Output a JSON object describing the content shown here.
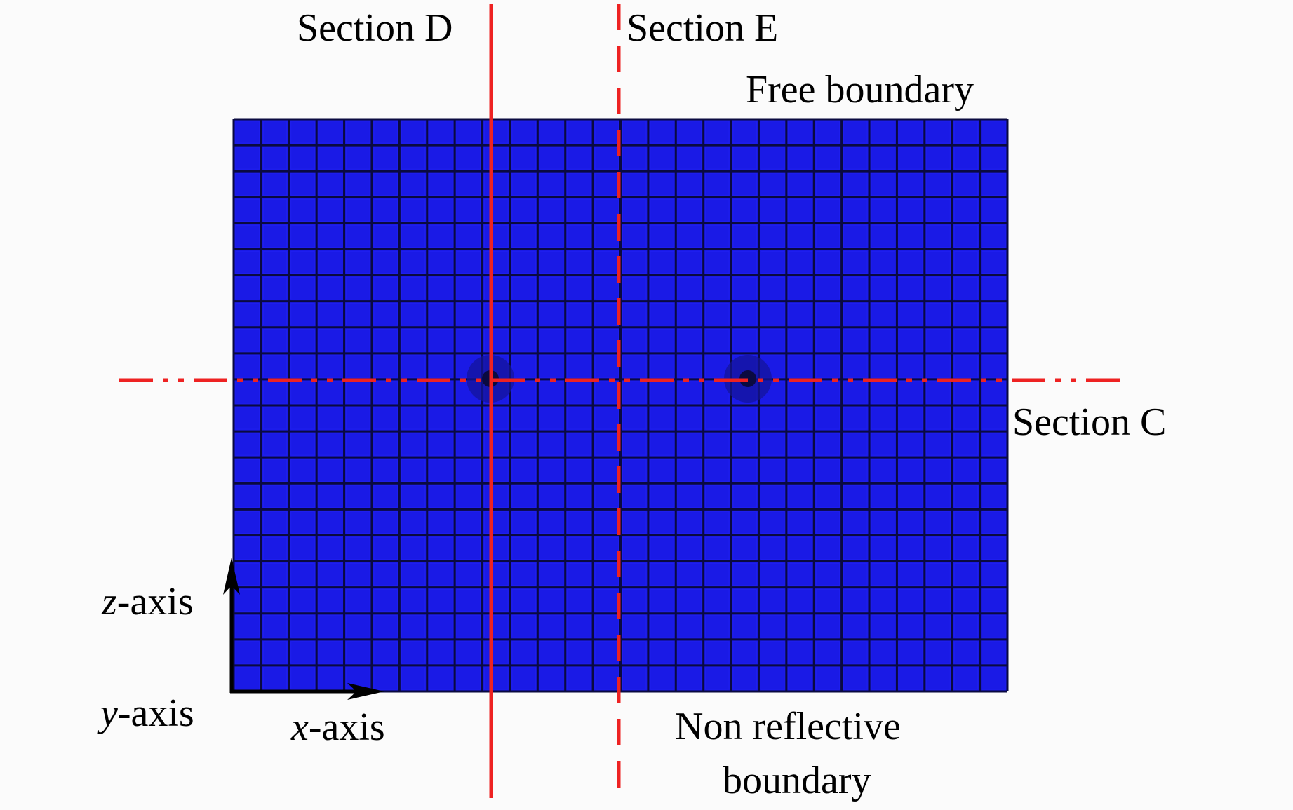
{
  "diagram": {
    "labels": {
      "section_d": "Section D",
      "section_e": "Section E",
      "section_c": "Section C",
      "free_boundary": "Free boundary",
      "non_reflective_line1": "Non reflective",
      "non_reflective_line2": "boundary",
      "z_axis_var": "z",
      "z_axis_rest": "-axis",
      "y_axis_var": "y",
      "y_axis_rest": "-axis",
      "x_axis_var": "x",
      "x_axis_rest": "-axis"
    },
    "mesh": {
      "columns": 28,
      "rows": 22
    },
    "colors": {
      "mesh_fill": "#1a1ae6",
      "mesh_lines": "#0a0a40",
      "section_lines": "#ee2222",
      "axes": "#000000",
      "background": "#fbfbfb"
    }
  }
}
